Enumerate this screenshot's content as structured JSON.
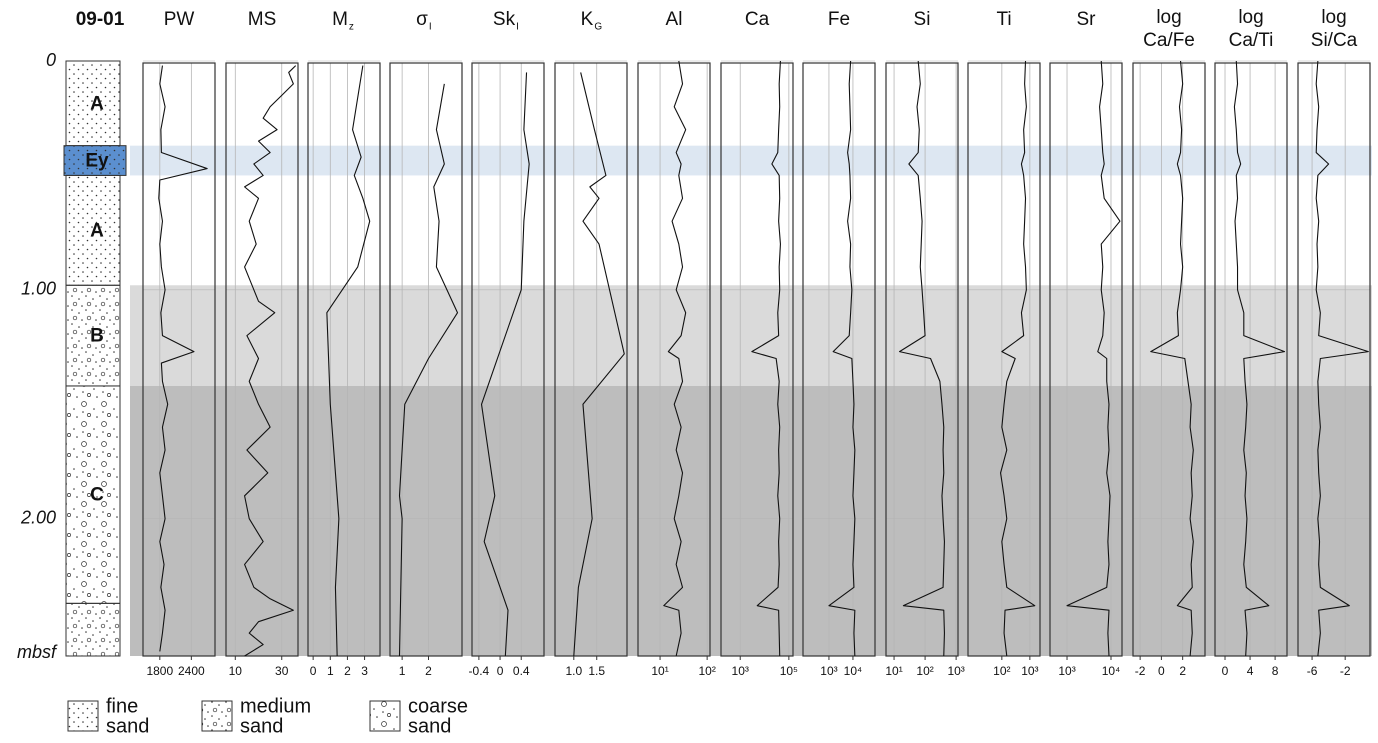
{
  "chart_data": [
    {
      "type": "lithology",
      "title": [
        "09-01"
      ],
      "ylim": [
        0,
        2.6
      ],
      "yticks": [
        0,
        {
          "value": 1,
          "label": "1.00"
        },
        {
          "value": 2,
          "label": "2.00"
        }
      ],
      "ylabel": "mbsf",
      "layers": [
        {
          "from": 0,
          "to": 0.37,
          "label": "A",
          "pattern": "fine"
        },
        {
          "from": 0.37,
          "to": 0.5,
          "label": "Ey",
          "pattern": "fine",
          "color": "#5b8fcf"
        },
        {
          "from": 0.5,
          "to": 0.98,
          "label": "A",
          "pattern": "fine"
        },
        {
          "from": 0.98,
          "to": 1.42,
          "label": "B",
          "pattern": "medium"
        },
        {
          "from": 1.42,
          "to": 2.37,
          "label": "C",
          "pattern": "coarse"
        },
        {
          "from": 2.37,
          "to": 2.6,
          "pattern": "medium"
        }
      ],
      "zones": [
        {
          "from": 0.37,
          "to": 0.5,
          "color": "#dde7f2"
        },
        {
          "from": 0.98,
          "to": 1.42,
          "color": "#dadada"
        },
        {
          "from": 1.42,
          "to": 2.6,
          "color": "#bdbdbd"
        }
      ],
      "legend": [
        {
          "label": [
            "fine",
            "sand"
          ],
          "pattern": "fine"
        },
        {
          "label": [
            "medium",
            "sand"
          ],
          "pattern": "medium"
        },
        {
          "label": [
            "coarse",
            "sand"
          ],
          "pattern": "coarse"
        }
      ]
    },
    {
      "type": "line",
      "title": [
        "PW"
      ],
      "xlim": [
        1480,
        2850
      ],
      "xticks": [
        1800,
        2400
      ],
      "y": [
        0.02,
        0.1,
        0.2,
        0.3,
        0.4,
        0.47,
        0.52,
        0.6,
        0.7,
        0.8,
        0.9,
        1.0,
        1.1,
        1.2,
        1.27,
        1.32,
        1.4,
        1.5,
        1.6,
        1.7,
        1.8,
        1.9,
        2.0,
        2.1,
        2.2,
        2.3,
        2.4,
        2.5,
        2.58
      ],
      "values": [
        1850,
        1800,
        1900,
        1820,
        1830,
        2700,
        1800,
        1780,
        1850,
        1800,
        1830,
        1900,
        1820,
        1850,
        2450,
        1830,
        1850,
        1950,
        1850,
        1900,
        1800,
        1850,
        1900,
        1800,
        1880,
        1820,
        1900,
        1850,
        1800
      ]
    },
    {
      "type": "line",
      "title": [
        "MS"
      ],
      "xlim": [
        6,
        37
      ],
      "xticks": [
        10,
        30
      ],
      "y": [
        0.02,
        0.05,
        0.1,
        0.15,
        0.2,
        0.25,
        0.3,
        0.35,
        0.4,
        0.45,
        0.5,
        0.55,
        0.6,
        0.7,
        0.8,
        0.9,
        1.0,
        1.05,
        1.1,
        1.2,
        1.3,
        1.4,
        1.5,
        1.6,
        1.7,
        1.8,
        1.9,
        2.0,
        2.1,
        2.2,
        2.3,
        2.35,
        2.4,
        2.45,
        2.5,
        2.55,
        2.6
      ],
      "values": [
        36,
        33,
        35,
        30,
        25,
        22,
        28,
        20,
        25,
        18,
        22,
        14,
        20,
        16,
        19,
        14,
        18,
        20,
        27,
        15,
        20,
        16,
        20,
        25,
        15,
        24,
        14,
        16,
        22,
        14,
        18,
        25,
        35,
        20,
        16,
        22,
        14
      ]
    },
    {
      "type": "line",
      "title": [
        "M"
      ],
      "title_sub": "z",
      "xlim": [
        -0.3,
        3.9
      ],
      "xticks": [
        0,
        1,
        2,
        3
      ],
      "y": [
        0.02,
        0.3,
        0.42,
        0.5,
        0.6,
        0.7,
        0.9,
        1.1,
        1.5,
        2.0,
        2.3,
        2.6
      ],
      "values": [
        2.9,
        2.3,
        2.8,
        2.4,
        2.9,
        3.3,
        2.6,
        0.8,
        1.0,
        1.5,
        1.3,
        1.4
      ]
    },
    {
      "type": "line",
      "title": [
        "σ"
      ],
      "title_sub": "I",
      "xlim": [
        0.54,
        3.27
      ],
      "xticks": [
        1,
        2
      ],
      "y": [
        0.1,
        0.3,
        0.45,
        0.55,
        0.7,
        0.9,
        1.1,
        1.3,
        1.5,
        1.9,
        2.0,
        2.6
      ],
      "values": [
        2.6,
        2.3,
        2.6,
        2.2,
        2.4,
        2.3,
        3.1,
        2.0,
        1.1,
        0.9,
        1.0,
        0.9
      ]
    },
    {
      "type": "line",
      "title": [
        "Sk"
      ],
      "title_sub": "I",
      "xlim": [
        -0.53,
        0.83
      ],
      "xticks": [
        -0.4,
        0,
        0.4
      ],
      "y": [
        0.05,
        0.3,
        0.45,
        0.7,
        1.0,
        1.5,
        1.9,
        2.1,
        2.4,
        2.6
      ],
      "values": [
        0.5,
        0.45,
        0.55,
        0.45,
        0.4,
        -0.35,
        -0.1,
        -0.3,
        0.15,
        0.1
      ]
    },
    {
      "type": "line",
      "title": [
        "K"
      ],
      "title_sub": "G",
      "xlim": [
        0.59,
        2.16
      ],
      "xticks": [
        {
          "value": 1,
          "label": "1.0"
        },
        1.5
      ],
      "y": [
        0.05,
        0.3,
        0.5,
        0.55,
        0.6,
        0.7,
        0.8,
        1.28,
        1.5,
        2.0,
        2.3,
        2.6
      ],
      "values": [
        1.15,
        1.45,
        1.7,
        1.35,
        1.55,
        1.2,
        1.55,
        2.1,
        1.2,
        1.4,
        1.1,
        1.0
      ]
    },
    {
      "type": "line",
      "title": [
        "Al"
      ],
      "log": true,
      "xlim": [
        3.4,
        115
      ],
      "xticks": [
        {
          "value": 10,
          "label": "10¹"
        },
        {
          "value": 100,
          "label": "10²"
        }
      ],
      "y": [
        0,
        0.1,
        0.2,
        0.3,
        0.4,
        0.45,
        0.5,
        0.6,
        0.7,
        0.8,
        0.9,
        1.0,
        1.1,
        1.2,
        1.27,
        1.3,
        1.4,
        1.5,
        1.6,
        1.7,
        1.8,
        1.9,
        2.0,
        2.1,
        2.2,
        2.3,
        2.38,
        2.4,
        2.5,
        2.6
      ],
      "values": [
        25,
        30,
        20,
        35,
        22,
        28,
        25,
        30,
        18,
        25,
        30,
        22,
        35,
        28,
        15,
        25,
        30,
        20,
        28,
        22,
        30,
        25,
        20,
        28,
        22,
        30,
        12,
        25,
        28,
        22
      ]
    },
    {
      "type": "line",
      "title": [
        "Ca"
      ],
      "log": true,
      "xlim": [
        162,
        148000
      ],
      "xticks": [
        {
          "value": 1000,
          "label": "10³"
        },
        {
          "value": 100000,
          "label": "10⁵"
        }
      ],
      "y": [
        0,
        0.1,
        0.2,
        0.3,
        0.4,
        0.45,
        0.5,
        0.6,
        0.7,
        0.8,
        0.9,
        1.0,
        1.1,
        1.2,
        1.27,
        1.3,
        1.4,
        1.5,
        1.6,
        1.7,
        1.8,
        1.9,
        2.0,
        2.1,
        2.2,
        2.3,
        2.38,
        2.4,
        2.5,
        2.6
      ],
      "values": [
        45000,
        40000,
        42000,
        38000,
        35000,
        20000,
        40000,
        42000,
        38000,
        45000,
        40000,
        42000,
        35000,
        38000,
        3000,
        30000,
        40000,
        35000,
        42000,
        38000,
        40000,
        35000,
        42000,
        38000,
        40000,
        36000,
        5000,
        38000,
        40000,
        42000
      ]
    },
    {
      "type": "line",
      "title": [
        "Fe"
      ],
      "log": true,
      "xlim": [
        83,
        83000
      ],
      "xticks": [
        {
          "value": 1000,
          "label": "10³"
        },
        {
          "value": 10000,
          "label": "10⁴"
        }
      ],
      "y": [
        0,
        0.1,
        0.2,
        0.3,
        0.4,
        0.45,
        0.5,
        0.6,
        0.7,
        0.8,
        0.9,
        1.0,
        1.1,
        1.2,
        1.27,
        1.3,
        1.4,
        1.5,
        1.6,
        1.7,
        1.8,
        1.9,
        2.0,
        2.1,
        2.2,
        2.3,
        2.38,
        2.4,
        2.5,
        2.6
      ],
      "values": [
        8000,
        7000,
        7500,
        8000,
        6000,
        7000,
        7500,
        8000,
        6000,
        8000,
        7500,
        9000,
        8000,
        7000,
        1500,
        9000,
        10000,
        11000,
        10000,
        12000,
        11000,
        10000,
        12000,
        11000,
        10000,
        11000,
        1000,
        12000,
        11000,
        12000
      ]
    },
    {
      "type": "line",
      "title": [
        "Si"
      ],
      "log": true,
      "xlim": [
        5.5,
        1150
      ],
      "xticks": [
        {
          "value": 10,
          "label": "10¹"
        },
        {
          "value": 100,
          "label": "10²"
        },
        {
          "value": 1000,
          "label": "10³"
        }
      ],
      "y": [
        0,
        0.1,
        0.2,
        0.3,
        0.4,
        0.45,
        0.5,
        0.6,
        0.7,
        0.8,
        0.9,
        1.0,
        1.1,
        1.2,
        1.27,
        1.3,
        1.4,
        1.5,
        1.6,
        1.7,
        1.8,
        1.9,
        2.0,
        2.1,
        2.2,
        2.3,
        2.38,
        2.4,
        2.5,
        2.6
      ],
      "values": [
        60,
        70,
        55,
        65,
        60,
        30,
        60,
        70,
        80,
        75,
        70,
        80,
        90,
        100,
        15,
        150,
        300,
        350,
        400,
        380,
        400,
        350,
        380,
        420,
        400,
        380,
        20,
        400,
        420,
        400
      ]
    },
    {
      "type": "line",
      "title": [
        "Ti"
      ],
      "log": true,
      "xlim": [
        6.2,
        2300
      ],
      "xticks": [
        {
          "value": 100,
          "label": "10²"
        },
        {
          "value": 1000,
          "label": "10³"
        }
      ],
      "y": [
        0,
        0.1,
        0.2,
        0.3,
        0.4,
        0.45,
        0.5,
        0.6,
        0.7,
        0.8,
        0.9,
        1.0,
        1.1,
        1.2,
        1.27,
        1.3,
        1.4,
        1.5,
        1.6,
        1.7,
        1.8,
        1.9,
        2.0,
        2.1,
        2.2,
        2.3,
        2.38,
        2.4,
        2.5,
        2.6
      ],
      "values": [
        700,
        650,
        750,
        600,
        650,
        500,
        600,
        700,
        650,
        600,
        700,
        750,
        500,
        600,
        100,
        300,
        150,
        120,
        100,
        150,
        90,
        120,
        150,
        100,
        120,
        150,
        1500,
        130,
        120,
        150
      ]
    },
    {
      "type": "line",
      "title": [
        "Sr"
      ],
      "log": true,
      "xlim": [
        410,
        17800
      ],
      "xticks": [
        {
          "value": 1000,
          "label": "10³"
        },
        {
          "value": 10000,
          "label": "10⁴"
        }
      ],
      "y": [
        0,
        0.1,
        0.2,
        0.3,
        0.4,
        0.45,
        0.5,
        0.6,
        0.7,
        0.8,
        0.9,
        1.0,
        1.1,
        1.2,
        1.27,
        1.3,
        1.4,
        1.5,
        1.6,
        1.7,
        1.8,
        1.9,
        2.0,
        2.1,
        2.2,
        2.3,
        2.38,
        2.4,
        2.5,
        2.6
      ],
      "values": [
        6000,
        6500,
        5500,
        6000,
        6500,
        7000,
        6000,
        7000,
        16000,
        6000,
        6500,
        6000,
        7000,
        6500,
        5000,
        8000,
        8000,
        9000,
        8500,
        9000,
        8000,
        9500,
        9000,
        8500,
        9000,
        8000,
        1000,
        9000,
        8500,
        9000
      ]
    },
    {
      "type": "line",
      "title": [
        "log",
        "Ca/Fe"
      ],
      "xlim": [
        -2.67,
        4.1
      ],
      "xticks": [
        -2,
        0,
        2
      ],
      "y": [
        0,
        0.1,
        0.2,
        0.3,
        0.4,
        0.45,
        0.5,
        0.6,
        0.7,
        0.8,
        0.9,
        1.0,
        1.1,
        1.2,
        1.27,
        1.3,
        1.4,
        1.5,
        1.6,
        1.7,
        1.8,
        1.9,
        2.0,
        2.1,
        2.2,
        2.3,
        2.38,
        2.4,
        2.5,
        2.6
      ],
      "values": [
        1.8,
        2,
        1.7,
        1.9,
        1.8,
        1.5,
        1.8,
        2,
        1.9,
        1.8,
        2,
        1.8,
        1.5,
        1.6,
        -1,
        2.2,
        2.5,
        2.8,
        2.7,
        3,
        2.8,
        2.9,
        2.7,
        3,
        2.8,
        2.9,
        1.5,
        2.8,
        2.9,
        2.7
      ]
    },
    {
      "type": "line",
      "title": [
        "log",
        "Ca/Ti"
      ],
      "xlim": [
        -1.6,
        9.9
      ],
      "xticks": [
        0,
        4,
        8
      ],
      "y": [
        0,
        0.1,
        0.2,
        0.3,
        0.4,
        0.45,
        0.5,
        0.6,
        0.7,
        0.8,
        0.9,
        1.0,
        1.1,
        1.2,
        1.27,
        1.3,
        1.4,
        1.5,
        1.6,
        1.7,
        1.8,
        1.9,
        2.0,
        2.1,
        2.2,
        2.3,
        2.38,
        2.4,
        2.5,
        2.6
      ],
      "values": [
        1.8,
        2,
        1.5,
        1.8,
        2,
        2.5,
        1.8,
        2,
        1.6,
        1.8,
        2,
        2,
        3,
        3,
        9.5,
        3,
        3.2,
        3.5,
        3.3,
        3,
        3.4,
        3.2,
        3.5,
        3.3,
        3,
        3.4,
        7,
        3.2,
        3.5,
        3.3
      ]
    },
    {
      "type": "line",
      "title": [
        "log",
        "Si/Ca"
      ],
      "xlim": [
        -7.7,
        1.0
      ],
      "xticks": [
        -6,
        -2
      ],
      "y": [
        0,
        0.1,
        0.2,
        0.3,
        0.4,
        0.45,
        0.5,
        0.6,
        0.7,
        0.8,
        0.9,
        1.0,
        1.1,
        1.2,
        1.27,
        1.3,
        1.4,
        1.5,
        1.6,
        1.7,
        1.8,
        1.9,
        2.0,
        2.1,
        2.2,
        2.3,
        2.38,
        2.4,
        2.5,
        2.6
      ],
      "values": [
        -5.3,
        -5.5,
        -5.2,
        -5.4,
        -5.5,
        -4,
        -5.3,
        -5.5,
        -5.2,
        -5.4,
        -5.3,
        -5.5,
        -5,
        -5.2,
        0.8,
        -5,
        -5.3,
        -5.2,
        -5,
        -5.3,
        -5.2,
        -5,
        -5.3,
        -5.1,
        -5.2,
        -5,
        -1.5,
        -5.2,
        -5,
        -5.3
      ]
    }
  ]
}
